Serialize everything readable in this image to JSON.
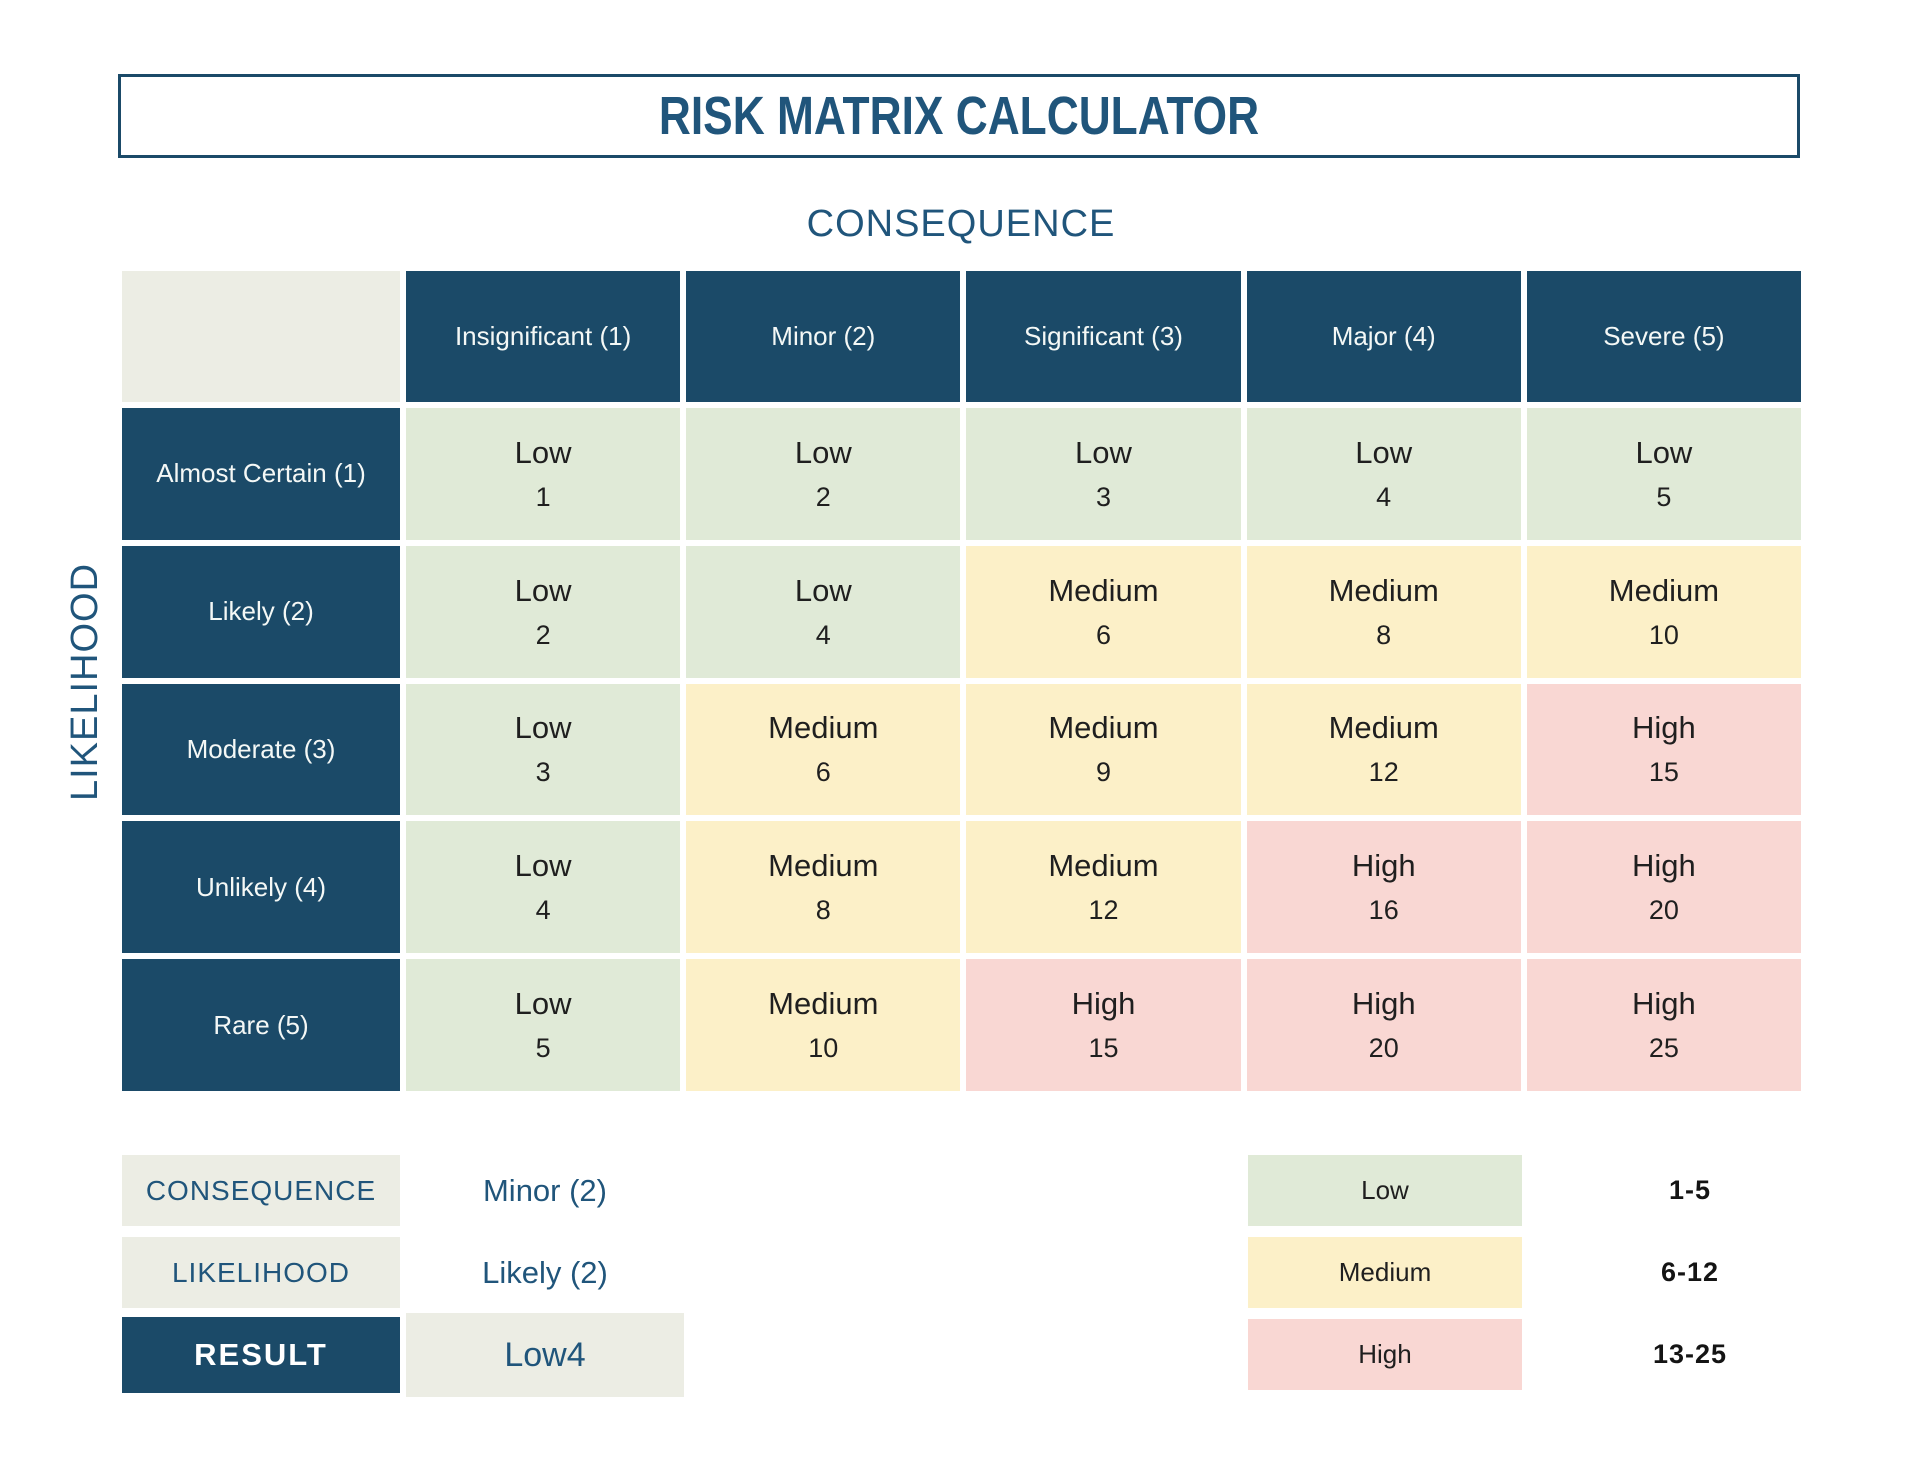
{
  "title": "RISK MATRIX CALCULATOR",
  "axis_labels": {
    "consequence": "CONSEQUENCE",
    "likelihood": "LIKELIHOOD"
  },
  "matrix": {
    "column_headers": [
      "Insignificant (1)",
      "Minor (2)",
      "Significant (3)",
      "Major (4)",
      "Severe (5)"
    ],
    "rows": [
      {
        "header": "Almost Certain (1)",
        "cells": [
          {
            "label": "Low",
            "value": "1",
            "level": "low"
          },
          {
            "label": "Low",
            "value": "2",
            "level": "low"
          },
          {
            "label": "Low",
            "value": "3",
            "level": "low"
          },
          {
            "label": "Low",
            "value": "4",
            "level": "low"
          },
          {
            "label": "Low",
            "value": "5",
            "level": "low"
          }
        ]
      },
      {
        "header": "Likely (2)",
        "cells": [
          {
            "label": "Low",
            "value": "2",
            "level": "low"
          },
          {
            "label": "Low",
            "value": "4",
            "level": "low"
          },
          {
            "label": "Medium",
            "value": "6",
            "level": "medium"
          },
          {
            "label": "Medium",
            "value": "8",
            "level": "medium"
          },
          {
            "label": "Medium",
            "value": "10",
            "level": "medium"
          }
        ]
      },
      {
        "header": "Moderate (3)",
        "cells": [
          {
            "label": "Low",
            "value": "3",
            "level": "low"
          },
          {
            "label": "Medium",
            "value": "6",
            "level": "medium"
          },
          {
            "label": "Medium",
            "value": "9",
            "level": "medium"
          },
          {
            "label": "Medium",
            "value": "12",
            "level": "medium"
          },
          {
            "label": "High",
            "value": "15",
            "level": "high"
          }
        ]
      },
      {
        "header": "Unlikely (4)",
        "cells": [
          {
            "label": "Low",
            "value": "4",
            "level": "low"
          },
          {
            "label": "Medium",
            "value": "8",
            "level": "medium"
          },
          {
            "label": "Medium",
            "value": "12",
            "level": "medium"
          },
          {
            "label": "High",
            "value": "16",
            "level": "high"
          },
          {
            "label": "High",
            "value": "20",
            "level": "high"
          }
        ]
      },
      {
        "header": "Rare (5)",
        "cells": [
          {
            "label": "Low",
            "value": "5",
            "level": "low"
          },
          {
            "label": "Medium",
            "value": "10",
            "level": "medium"
          },
          {
            "label": "High",
            "value": "15",
            "level": "high"
          },
          {
            "label": "High",
            "value": "20",
            "level": "high"
          },
          {
            "label": "High",
            "value": "25",
            "level": "high"
          }
        ]
      }
    ]
  },
  "calculator": {
    "rows": [
      {
        "label": "CONSEQUENCE",
        "value": "Minor (2)"
      },
      {
        "label": "LIKELIHOOD",
        "value": "Likely (2)"
      },
      {
        "label": "RESULT",
        "value": "Low4"
      }
    ]
  },
  "legend": [
    {
      "label": "Low",
      "range": "1-5",
      "level": "low"
    },
    {
      "label": "Medium",
      "range": "6-12",
      "level": "medium"
    },
    {
      "label": "High",
      "range": "13-25",
      "level": "high"
    }
  ],
  "colors": {
    "navy": "#1b4a68",
    "heading_text": "#20557b",
    "low": "#e0ead7",
    "medium": "#fcf0c8",
    "high": "#f9d7d3",
    "light_box": "#ecede4",
    "cell_text": "#1f1f1f",
    "range_text": "#141414",
    "header_cell_text": "#f4f8f6"
  },
  "chart_data": {
    "type": "heatmap",
    "title": "RISK MATRIX CALCULATOR",
    "xlabel": "CONSEQUENCE",
    "ylabel": "LIKELIHOOD",
    "x_categories": [
      "Insignificant (1)",
      "Minor (2)",
      "Significant (3)",
      "Major (4)",
      "Severe (5)"
    ],
    "y_categories": [
      "Almost Certain (1)",
      "Likely (2)",
      "Moderate (3)",
      "Unlikely (4)",
      "Rare (5)"
    ],
    "values": [
      [
        1,
        2,
        3,
        4,
        5
      ],
      [
        2,
        4,
        6,
        8,
        10
      ],
      [
        3,
        6,
        9,
        12,
        15
      ],
      [
        4,
        8,
        12,
        16,
        20
      ],
      [
        5,
        10,
        15,
        20,
        25
      ]
    ],
    "labels": [
      [
        "Low",
        "Low",
        "Low",
        "Low",
        "Low"
      ],
      [
        "Low",
        "Low",
        "Medium",
        "Medium",
        "Medium"
      ],
      [
        "Low",
        "Medium",
        "Medium",
        "Medium",
        "High"
      ],
      [
        "Low",
        "Medium",
        "Medium",
        "High",
        "High"
      ],
      [
        "Low",
        "Medium",
        "High",
        "High",
        "High"
      ]
    ],
    "levels": {
      "Low": "1-5",
      "Medium": "6-12",
      "High": "13-25"
    },
    "selected": {
      "consequence": "Minor (2)",
      "likelihood": "Likely (2)",
      "result": "Low4"
    },
    "legend_position": "bottom-right",
    "grid": false
  }
}
